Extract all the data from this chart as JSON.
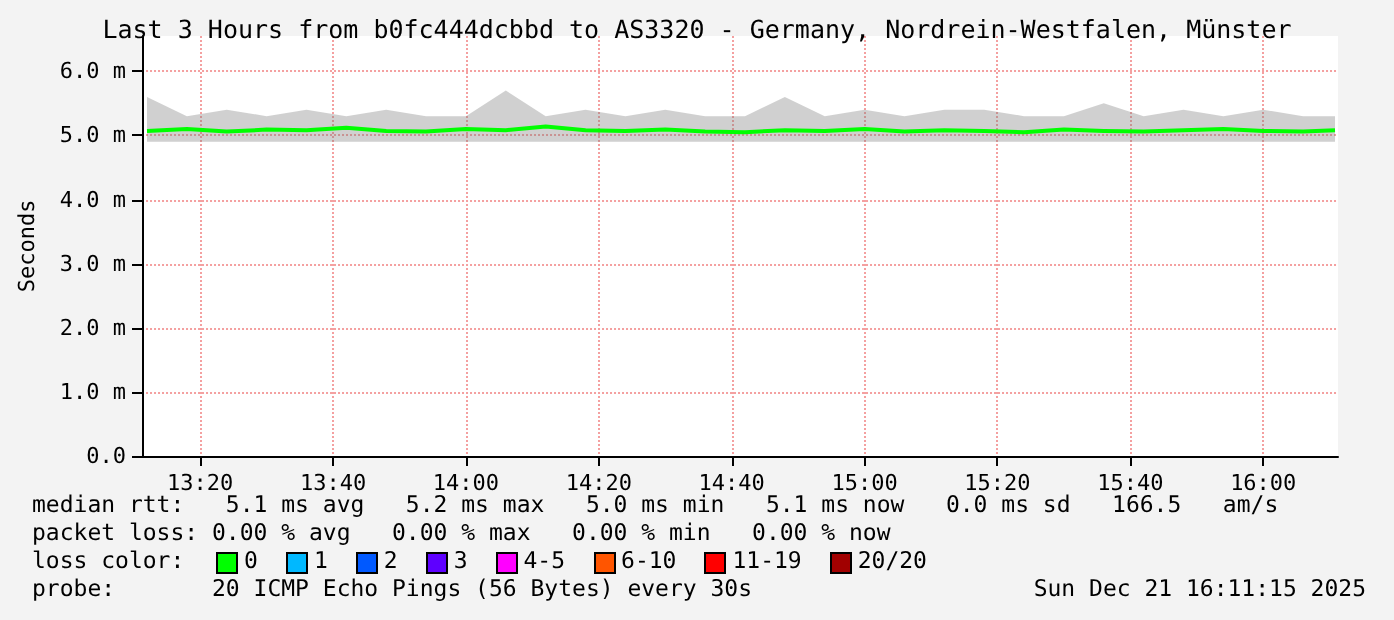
{
  "chart_data": {
    "type": "line",
    "title": "Last 3 Hours from b0fc444dcbbd to AS3320 - Germany, Nordrein-Westfalen, Münster",
    "ylabel": "Seconds",
    "x": [
      13.2,
      13.3,
      13.4,
      13.5,
      13.6,
      13.7,
      13.8,
      13.9,
      14.0,
      14.1,
      14.2,
      14.3,
      14.4,
      14.5,
      14.6,
      14.7,
      14.8,
      14.9,
      15.0,
      15.1,
      15.2,
      15.3,
      15.4,
      15.5,
      15.6,
      15.7,
      15.8,
      15.9,
      16.0,
      16.1,
      16.18
    ],
    "series": [
      {
        "color": "#00ff00",
        "values": [
          5.07,
          5.1,
          5.06,
          5.09,
          5.08,
          5.12,
          5.07,
          5.06,
          5.1,
          5.08,
          5.14,
          5.08,
          5.07,
          5.09,
          5.06,
          5.05,
          5.08,
          5.07,
          5.1,
          5.06,
          5.08,
          5.07,
          5.05,
          5.09,
          5.07,
          5.06,
          5.08,
          5.1,
          5.07,
          5.06,
          5.08
        ],
        "lower": [
          4.9,
          4.9,
          4.9,
          4.9,
          4.9,
          4.9,
          4.9,
          4.9,
          4.9,
          4.9,
          4.9,
          4.9,
          4.9,
          4.9,
          4.9,
          4.9,
          4.9,
          4.9,
          4.9,
          4.9,
          4.9,
          4.9,
          4.9,
          4.9,
          4.9,
          4.9,
          4.9,
          4.9,
          4.9,
          4.9,
          4.9
        ],
        "upper": [
          5.6,
          5.3,
          5.4,
          5.3,
          5.4,
          5.3,
          5.4,
          5.3,
          5.3,
          5.7,
          5.3,
          5.4,
          5.3,
          5.4,
          5.3,
          5.3,
          5.6,
          5.3,
          5.4,
          5.3,
          5.4,
          5.4,
          5.3,
          5.3,
          5.5,
          5.3,
          5.4,
          5.3,
          5.4,
          5.3,
          5.3
        ]
      }
    ],
    "xlim": [
      13.1875,
      16.1875
    ],
    "xticks": [
      {
        "value": 13.3333,
        "label": "13:20"
      },
      {
        "value": 13.6667,
        "label": "13:40"
      },
      {
        "value": 14,
        "label": "14:00"
      },
      {
        "value": 14.3333,
        "label": "14:20"
      },
      {
        "value": 14.6667,
        "label": "14:40"
      },
      {
        "value": 15,
        "label": "15:00"
      },
      {
        "value": 15.3333,
        "label": "15:20"
      },
      {
        "value": 15.6667,
        "label": "15:40"
      },
      {
        "value": 16,
        "label": "16:00"
      }
    ],
    "ylim": [
      0,
      6.55
    ],
    "yticks": [
      {
        "value": 0,
        "label": "0.0"
      },
      {
        "value": 1,
        "label": "1.0 m"
      },
      {
        "value": 2,
        "label": "2.0 m"
      },
      {
        "value": 3,
        "label": "3.0 m"
      },
      {
        "value": 4,
        "label": "4.0 m"
      },
      {
        "value": 5,
        "label": "5.0 m"
      },
      {
        "value": 6,
        "label": "6.0 m"
      }
    ],
    "grid": true,
    "marker": "none",
    "line_style": "solid",
    "annotations": [
      "median rtt:   5.1 ms avg   5.2 ms max   5.0 ms min   5.1 ms now   0.0 ms sd   166.5   am/s",
      "packet loss: 0.00 % avg   0.00 % max   0.00 % min   0.00 % now",
      "loss color:",
      "0",
      "1",
      "2",
      "3",
      "4-5",
      "6-10",
      "11-19",
      "20/20",
      "probe:       20 ICMP Echo Pings (56 Bytes) every 30s",
      "Sun Dec 21 16:11:15 2025"
    ]
  }
}
